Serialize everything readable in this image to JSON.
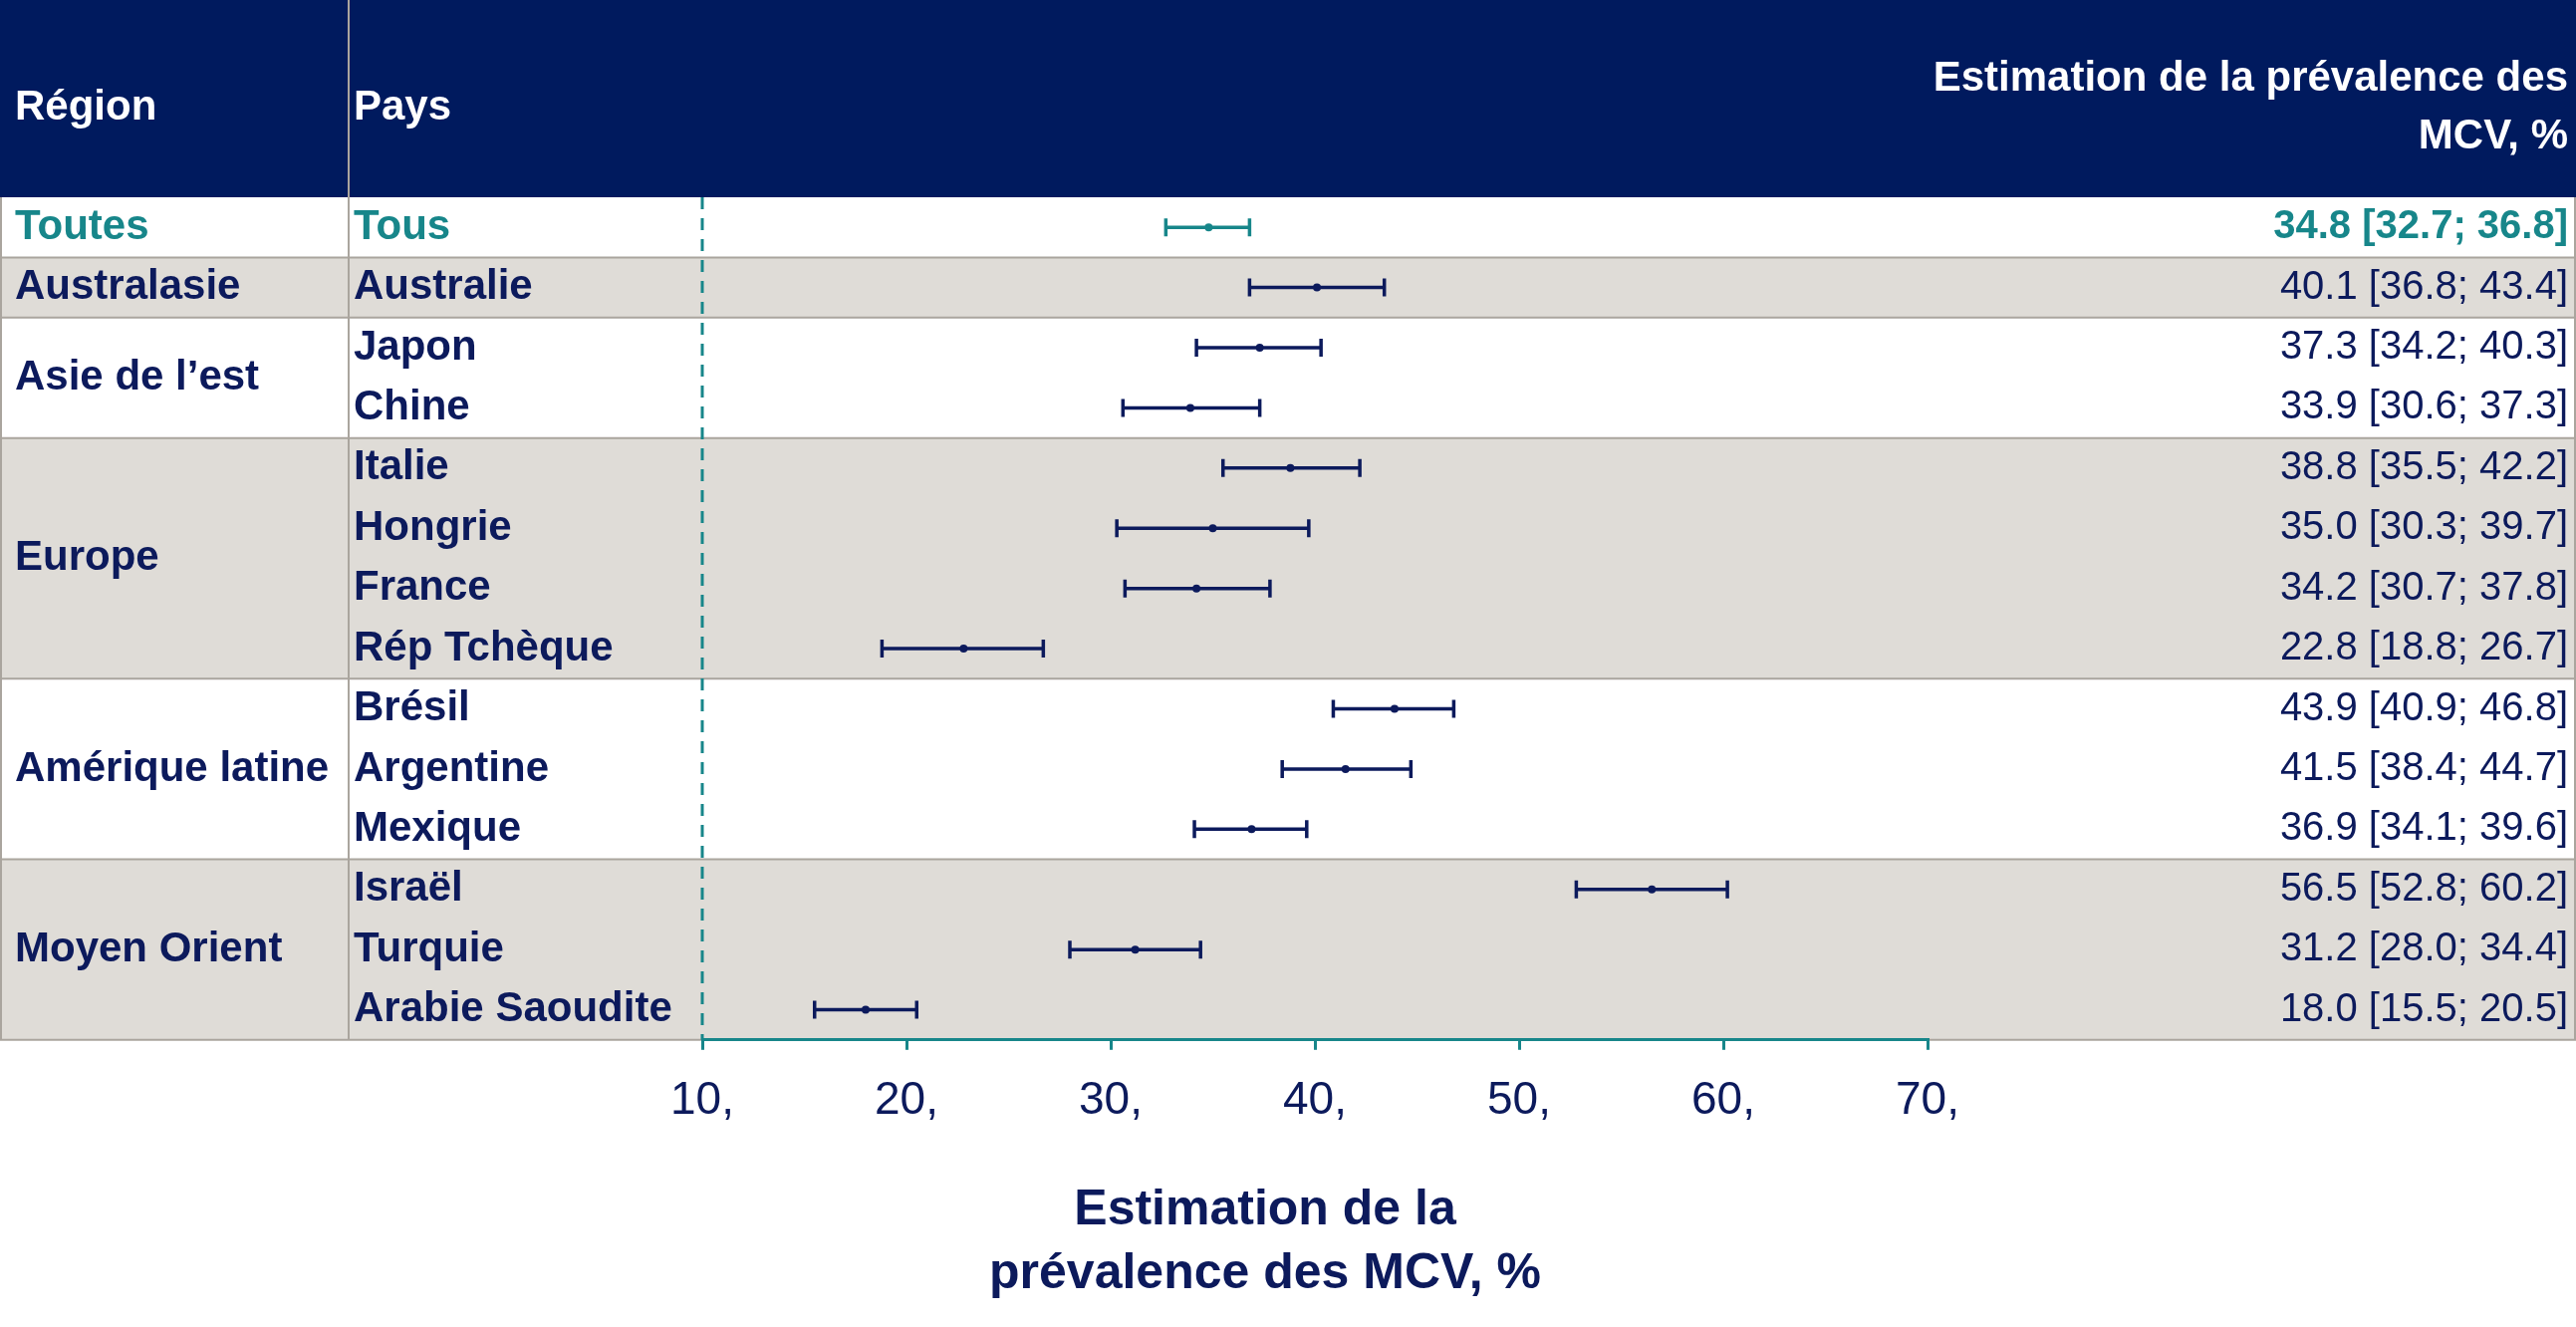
{
  "chart_data": {
    "type": "scatter",
    "orientation": "horizontal",
    "marker": "circle",
    "xlabel": "Estimation de la prévalence des MCV, %",
    "categories": [
      "Tous",
      "Australie",
      "Japon",
      "Chine",
      "Italie",
      "Hongrie",
      "France",
      "Rép Tchèque",
      "Brésil",
      "Argentine",
      "Mexique",
      "Israël",
      "Turquie",
      "Arabie Saoudite"
    ],
    "values": [
      34.8,
      40.1,
      37.3,
      33.9,
      38.8,
      35.0,
      34.2,
      22.8,
      43.9,
      41.5,
      36.9,
      56.5,
      31.2,
      18.0
    ],
    "errors": [
      [
        32.7,
        36.8
      ],
      [
        36.8,
        43.4
      ],
      [
        34.2,
        40.3
      ],
      [
        30.6,
        37.3
      ],
      [
        35.5,
        42.2
      ],
      [
        30.3,
        39.7
      ],
      [
        30.7,
        37.8
      ],
      [
        18.8,
        26.7
      ],
      [
        40.9,
        46.8
      ],
      [
        38.4,
        44.7
      ],
      [
        34.1,
        39.6
      ],
      [
        52.8,
        60.2
      ],
      [
        28.0,
        34.4
      ],
      [
        15.5,
        20.5
      ]
    ],
    "value_labels": [
      "34.8 [32.7; 36.8]",
      "40.1 [36.8; 43.4]",
      "37.3 [34.2; 40.3]",
      "33.9 [30.6; 37.3]",
      "38.8 [35.5; 42.2]",
      "35.0 [30.3; 39.7]",
      "34.2 [30.7; 37.8]",
      "22.8 [18.8; 26.7]",
      "43.9 [40.9; 46.8]",
      "41.5 [38.4; 44.7]",
      "36.9 [34.1; 39.6]",
      "56.5 [52.8; 60.2]",
      "31.2 [28.0; 34.4]",
      "18.0 [15.5; 20.5]"
    ],
    "colors": [
      "#17868a",
      "#0c1a5c",
      "#0c1a5c",
      "#0c1a5c",
      "#0c1a5c",
      "#0c1a5c",
      "#0c1a5c",
      "#0c1a5c",
      "#0c1a5c",
      "#0c1a5c",
      "#0c1a5c",
      "#0c1a5c",
      "#0c1a5c",
      "#0c1a5c"
    ],
    "xlim": [
      10,
      70
    ],
    "xticks": [
      {
        "value": 10,
        "label": "10,"
      },
      {
        "value": 20,
        "label": "20,"
      },
      {
        "value": 30,
        "label": "30,"
      },
      {
        "value": 40,
        "label": "40,"
      },
      {
        "value": 50,
        "label": "50,"
      },
      {
        "value": 60,
        "label": "60,"
      },
      {
        "value": 70,
        "label": "70,"
      }
    ],
    "ref_lines": [
      {
        "axis": "x",
        "value": 10,
        "color": "#17868a",
        "line_style": "dashed"
      }
    ],
    "bands": [
      {
        "axis": "y",
        "from": "Australie",
        "to": "Australie",
        "color": "#dfdcd7"
      },
      {
        "axis": "y",
        "from": "Italie",
        "to": "Rép Tchèque",
        "color": "#dfdcd7"
      },
      {
        "axis": "y",
        "from": "Israël",
        "to": "Arabie Saoudite",
        "color": "#dfdcd7"
      }
    ],
    "annotations": [
      "Région",
      "Pays",
      "Estimation de la prévalence des MCV, %",
      "Toutes",
      "Australasie",
      "Asie de l’est",
      "Europe",
      "Amérique latine",
      "Moyen Orient"
    ]
  }
}
